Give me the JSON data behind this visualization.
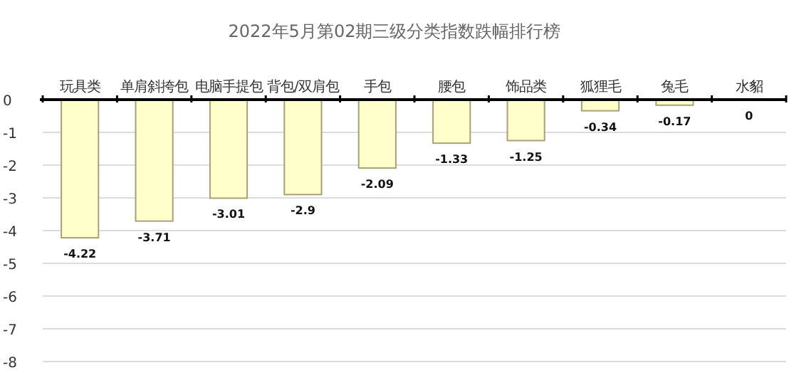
{
  "chart_data": {
    "type": "bar",
    "title": "2022年5月第02期三级分类指数跌幅排行榜",
    "categories": [
      "玩具类",
      "单肩斜挎包",
      "电脑手提包",
      "背包/双肩包",
      "手包",
      "腰包",
      "饰品类",
      "狐狸毛",
      "兔毛",
      "水貂"
    ],
    "series": [
      {
        "color": "#ffffcc",
        "values": [
          -4.22,
          -3.71,
          -3.01,
          -2.9,
          -2.09,
          -1.33,
          -1.25,
          -0.34,
          -0.17,
          0
        ]
      }
    ],
    "ylim": [
      -8,
      0
    ],
    "yticks": [
      0,
      -1,
      -2,
      -3,
      -4,
      -5,
      -6,
      -7,
      -8
    ],
    "grid": "y",
    "data_labels": true
  }
}
